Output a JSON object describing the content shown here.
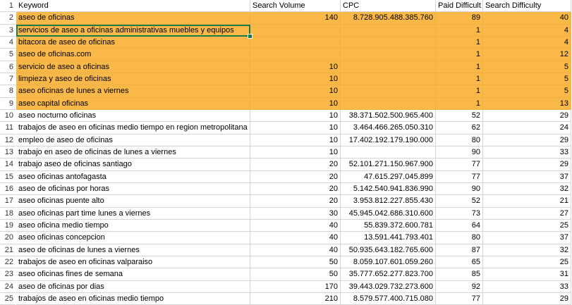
{
  "headers": {
    "row_number": "1",
    "keyword": "Keyword",
    "search_volume": "Search Volume",
    "cpc": "CPC",
    "paid_difficulty": "Paid Difficult",
    "search_difficulty": "Search Difficulty"
  },
  "colors": {
    "highlight": "#f9b847",
    "selection": "#1e7b45",
    "gridline": "#d6d6d6"
  },
  "selected_row": "3",
  "rows": [
    {
      "num": "2",
      "keyword": "aseo de oficinas",
      "sv": "140",
      "cpc": "8.728.905.488.385.760",
      "pd": "89",
      "sd": "40",
      "hl": true
    },
    {
      "num": "3",
      "keyword": "servicios de aseo a oficinas administrativas muebles y equipos",
      "sv": "",
      "cpc": "",
      "pd": "1",
      "sd": "4",
      "hl": true
    },
    {
      "num": "4",
      "keyword": "bitacora de aseo de oficinas",
      "sv": "",
      "cpc": "",
      "pd": "1",
      "sd": "4",
      "hl": true
    },
    {
      "num": "5",
      "keyword": "aseo de oficinas.com",
      "sv": "",
      "cpc": "",
      "pd": "1",
      "sd": "12",
      "hl": true
    },
    {
      "num": "6",
      "keyword": "servicio de aseo a oficinas",
      "sv": "10",
      "cpc": "",
      "pd": "1",
      "sd": "5",
      "hl": true
    },
    {
      "num": "7",
      "keyword": "limpieza y aseo de oficinas",
      "sv": "10",
      "cpc": "",
      "pd": "1",
      "sd": "5",
      "hl": true
    },
    {
      "num": "8",
      "keyword": "aseo oficinas de lunes a viernes",
      "sv": "10",
      "cpc": "",
      "pd": "1",
      "sd": "5",
      "hl": true
    },
    {
      "num": "9",
      "keyword": "aseo capital oficinas",
      "sv": "10",
      "cpc": "",
      "pd": "1",
      "sd": "13",
      "hl": true
    },
    {
      "num": "10",
      "keyword": "aseo nocturno oficinas",
      "sv": "10",
      "cpc": "38.371.502.500.965.400",
      "pd": "52",
      "sd": "29",
      "hl": false
    },
    {
      "num": "11",
      "keyword": "trabajos de aseo en oficinas medio tiempo en region metropolitana",
      "sv": "10",
      "cpc": "3.464.466.265.050.310",
      "pd": "62",
      "sd": "24",
      "hl": false
    },
    {
      "num": "12",
      "keyword": "empleo de aseo de oficinas",
      "sv": "10",
      "cpc": "17.402.192.179.190.000",
      "pd": "80",
      "sd": "29",
      "hl": false
    },
    {
      "num": "13",
      "keyword": "trabajo en aseo de oficinas de lunes a viernes",
      "sv": "10",
      "cpc": "",
      "pd": "90",
      "sd": "33",
      "hl": false
    },
    {
      "num": "14",
      "keyword": "trabajo aseo de oficinas santiago",
      "sv": "20",
      "cpc": "52.101.271.150.967.900",
      "pd": "77",
      "sd": "29",
      "hl": false
    },
    {
      "num": "15",
      "keyword": "aseo oficinas antofagasta",
      "sv": "20",
      "cpc": "47.615.297.045.899",
      "pd": "77",
      "sd": "37",
      "hl": false
    },
    {
      "num": "16",
      "keyword": "aseo de oficinas por horas",
      "sv": "20",
      "cpc": "5.142.540.941.836.990",
      "pd": "90",
      "sd": "32",
      "hl": false
    },
    {
      "num": "17",
      "keyword": "aseo oficinas puente alto",
      "sv": "20",
      "cpc": "3.953.812.227.855.430",
      "pd": "52",
      "sd": "21",
      "hl": false
    },
    {
      "num": "18",
      "keyword": "aseo oficinas part time lunes a viernes",
      "sv": "30",
      "cpc": "45.945.042.686.310.600",
      "pd": "73",
      "sd": "27",
      "hl": false
    },
    {
      "num": "19",
      "keyword": "aseo oficina medio tiempo",
      "sv": "40",
      "cpc": "55.839.372.600.781",
      "pd": "64",
      "sd": "25",
      "hl": false
    },
    {
      "num": "20",
      "keyword": "aseo oficinas concepcion",
      "sv": "40",
      "cpc": "13.591.441.793.401",
      "pd": "80",
      "sd": "37",
      "hl": false
    },
    {
      "num": "21",
      "keyword": "aseo de oficinas de lunes a viernes",
      "sv": "40",
      "cpc": "50.935.643.182.765.600",
      "pd": "87",
      "sd": "32",
      "hl": false
    },
    {
      "num": "22",
      "keyword": "trabajos de aseo en oficinas valparaiso",
      "sv": "50",
      "cpc": "8.059.107.601.059.260",
      "pd": "65",
      "sd": "25",
      "hl": false
    },
    {
      "num": "23",
      "keyword": "aseo oficinas fines de semana",
      "sv": "50",
      "cpc": "35.777.652.277.823.700",
      "pd": "85",
      "sd": "31",
      "hl": false
    },
    {
      "num": "24",
      "keyword": "aseo de oficinas por dias",
      "sv": "170",
      "cpc": "39.443.029.732.273.600",
      "pd": "92",
      "sd": "33",
      "hl": false
    },
    {
      "num": "25",
      "keyword": "trabajos de aseo en oficinas medio tiempo",
      "sv": "210",
      "cpc": "8.579.577.400.715.080",
      "pd": "77",
      "sd": "29",
      "hl": false
    }
  ]
}
